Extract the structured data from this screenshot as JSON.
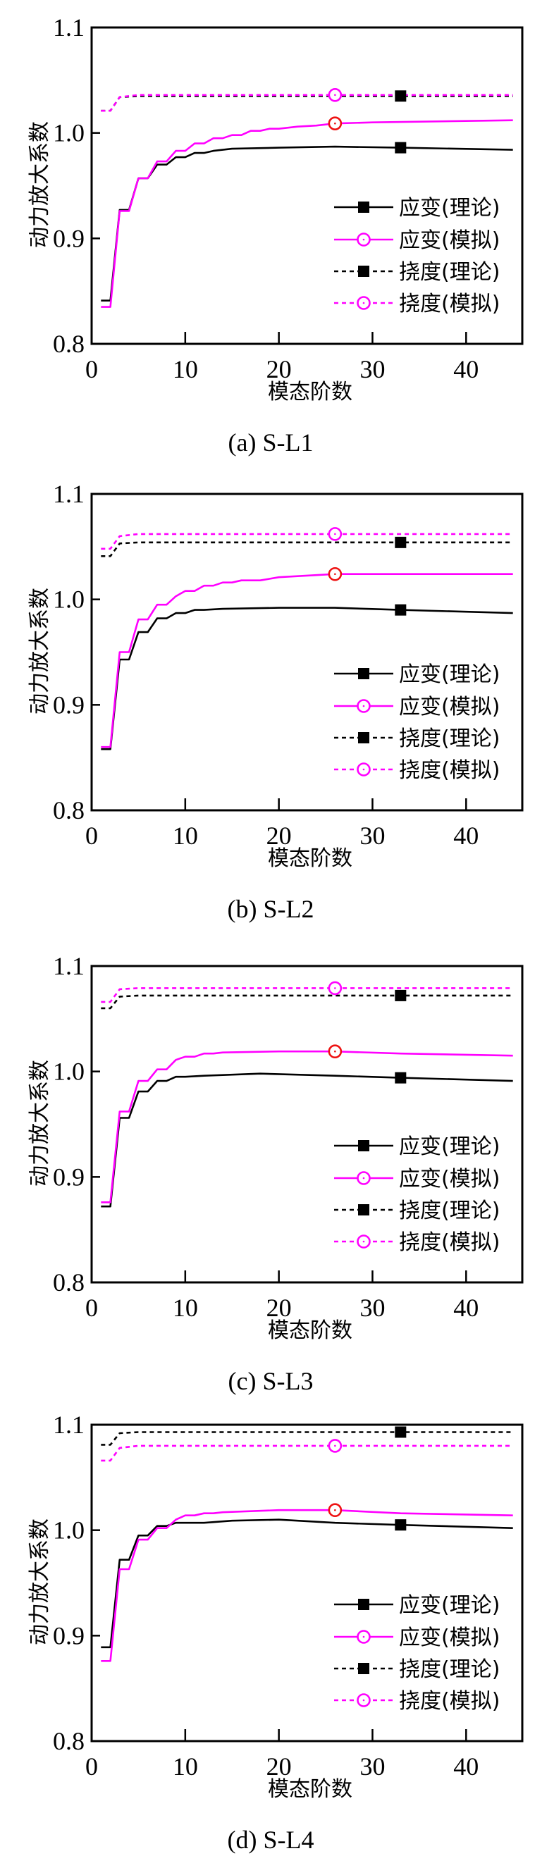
{
  "chart_data": [
    {
      "type": "line",
      "caption": "(a) S-L1",
      "xlabel": "模态阶数",
      "ylabel": "动力放大系数",
      "xlim": [
        0,
        46
      ],
      "ylim": [
        0.8,
        1.1
      ],
      "xticks": [
        "0",
        "10",
        "20",
        "30",
        "40"
      ],
      "yticks": [
        "0.8",
        "0.9",
        "1.0",
        "1.1"
      ],
      "legend_position": "lower-right",
      "series": [
        {
          "name": "应变(理论)",
          "color": "#000000",
          "dash": false,
          "marker": "square",
          "marker_color": "#000000",
          "marker_x": 33,
          "points": [
            [
              1,
              0.841
            ],
            [
              2,
              0.841
            ],
            [
              3,
              0.927
            ],
            [
              4,
              0.927
            ],
            [
              5,
              0.957
            ],
            [
              6,
              0.957
            ],
            [
              7,
              0.97
            ],
            [
              8,
              0.97
            ],
            [
              9,
              0.977
            ],
            [
              10,
              0.977
            ],
            [
              11,
              0.981
            ],
            [
              12,
              0.981
            ],
            [
              13,
              0.983
            ],
            [
              15,
              0.985
            ],
            [
              20,
              0.986
            ],
            [
              26,
              0.987
            ],
            [
              33,
              0.986
            ],
            [
              45,
              0.984
            ]
          ]
        },
        {
          "name": "应变(模拟)",
          "color": "#ff00ff",
          "dash": false,
          "marker": "circle",
          "marker_color": "#ee1111",
          "marker_x": 26,
          "points": [
            [
              1,
              0.835
            ],
            [
              2,
              0.835
            ],
            [
              3,
              0.926
            ],
            [
              4,
              0.926
            ],
            [
              5,
              0.957
            ],
            [
              6,
              0.957
            ],
            [
              7,
              0.973
            ],
            [
              8,
              0.973
            ],
            [
              9,
              0.983
            ],
            [
              10,
              0.983
            ],
            [
              11,
              0.99
            ],
            [
              12,
              0.99
            ],
            [
              13,
              0.995
            ],
            [
              14,
              0.995
            ],
            [
              15,
              0.998
            ],
            [
              16,
              0.998
            ],
            [
              17,
              1.002
            ],
            [
              18,
              1.002
            ],
            [
              19,
              1.004
            ],
            [
              20,
              1.004
            ],
            [
              22,
              1.006
            ],
            [
              24,
              1.007
            ],
            [
              26,
              1.009
            ],
            [
              30,
              1.01
            ],
            [
              45,
              1.012
            ]
          ]
        },
        {
          "name": "挠度(理论)",
          "color": "#000000",
          "dash": true,
          "marker": "square",
          "marker_color": "#000000",
          "marker_x": 33,
          "points": [
            [
              1,
              1.021
            ],
            [
              2,
              1.021
            ],
            [
              3,
              1.034
            ],
            [
              5,
              1.035
            ],
            [
              45,
              1.035
            ]
          ]
        },
        {
          "name": "挠度(模拟)",
          "color": "#ff00ff",
          "dash": true,
          "marker": "circle",
          "marker_color": "#ff00ff",
          "marker_x": 26,
          "points": [
            [
              1,
              1.021
            ],
            [
              2,
              1.021
            ],
            [
              3,
              1.034
            ],
            [
              5,
              1.036
            ],
            [
              45,
              1.036
            ]
          ]
        }
      ]
    },
    {
      "type": "line",
      "caption": "(b) S-L2",
      "xlabel": "模态阶数",
      "ylabel": "动力放大系数",
      "xlim": [
        0,
        46
      ],
      "ylim": [
        0.8,
        1.1
      ],
      "xticks": [
        "0",
        "10",
        "20",
        "30",
        "40"
      ],
      "yticks": [
        "0.8",
        "0.9",
        "1.0",
        "1.1"
      ],
      "legend_position": "lower-right",
      "series": [
        {
          "name": "应变(理论)",
          "color": "#000000",
          "dash": false,
          "marker": "square",
          "marker_color": "#000000",
          "marker_x": 33,
          "points": [
            [
              1,
              0.858
            ],
            [
              2,
              0.858
            ],
            [
              3,
              0.943
            ],
            [
              4,
              0.943
            ],
            [
              5,
              0.969
            ],
            [
              6,
              0.969
            ],
            [
              7,
              0.982
            ],
            [
              8,
              0.982
            ],
            [
              9,
              0.987
            ],
            [
              10,
              0.987
            ],
            [
              11,
              0.99
            ],
            [
              12,
              0.99
            ],
            [
              14,
              0.991
            ],
            [
              20,
              0.992
            ],
            [
              26,
              0.992
            ],
            [
              33,
              0.99
            ],
            [
              45,
              0.987
            ]
          ]
        },
        {
          "name": "应变(模拟)",
          "color": "#ff00ff",
          "dash": false,
          "marker": "circle",
          "marker_color": "#ee1111",
          "marker_x": 26,
          "points": [
            [
              1,
              0.86
            ],
            [
              2,
              0.86
            ],
            [
              3,
              0.95
            ],
            [
              4,
              0.95
            ],
            [
              5,
              0.981
            ],
            [
              6,
              0.981
            ],
            [
              7,
              0.995
            ],
            [
              8,
              0.995
            ],
            [
              9,
              1.003
            ],
            [
              10,
              1.008
            ],
            [
              11,
              1.008
            ],
            [
              12,
              1.013
            ],
            [
              13,
              1.013
            ],
            [
              14,
              1.016
            ],
            [
              15,
              1.016
            ],
            [
              16,
              1.018
            ],
            [
              18,
              1.018
            ],
            [
              20,
              1.021
            ],
            [
              22,
              1.022
            ],
            [
              26,
              1.024
            ],
            [
              30,
              1.024
            ],
            [
              45,
              1.024
            ]
          ]
        },
        {
          "name": "挠度(理论)",
          "color": "#000000",
          "dash": true,
          "marker": "square",
          "marker_color": "#000000",
          "marker_x": 33,
          "points": [
            [
              1,
              1.041
            ],
            [
              2,
              1.041
            ],
            [
              3,
              1.053
            ],
            [
              5,
              1.054
            ],
            [
              45,
              1.054
            ]
          ]
        },
        {
          "name": "挠度(模拟)",
          "color": "#ff00ff",
          "dash": true,
          "marker": "circle",
          "marker_color": "#ff00ff",
          "marker_x": 26,
          "points": [
            [
              1,
              1.048
            ],
            [
              2,
              1.048
            ],
            [
              3,
              1.06
            ],
            [
              5,
              1.062
            ],
            [
              45,
              1.062
            ]
          ]
        }
      ]
    },
    {
      "type": "line",
      "caption": "(c) S-L3",
      "xlabel": "模态阶数",
      "ylabel": "动力放大系数",
      "xlim": [
        0,
        46
      ],
      "ylim": [
        0.8,
        1.1
      ],
      "xticks": [
        "0",
        "10",
        "20",
        "30",
        "40"
      ],
      "yticks": [
        "0.8",
        "0.9",
        "1.0",
        "1.1"
      ],
      "legend_position": "lower-right",
      "series": [
        {
          "name": "应变(理论)",
          "color": "#000000",
          "dash": false,
          "marker": "square",
          "marker_color": "#000000",
          "marker_x": 33,
          "points": [
            [
              1,
              0.872
            ],
            [
              2,
              0.872
            ],
            [
              3,
              0.956
            ],
            [
              4,
              0.956
            ],
            [
              5,
              0.981
            ],
            [
              6,
              0.981
            ],
            [
              7,
              0.991
            ],
            [
              8,
              0.991
            ],
            [
              9,
              0.995
            ],
            [
              10,
              0.995
            ],
            [
              12,
              0.996
            ],
            [
              18,
              0.998
            ],
            [
              26,
              0.996
            ],
            [
              33,
              0.994
            ],
            [
              45,
              0.991
            ]
          ]
        },
        {
          "name": "应变(模拟)",
          "color": "#ff00ff",
          "dash": false,
          "marker": "circle",
          "marker_color": "#ee1111",
          "marker_x": 26,
          "points": [
            [
              1,
              0.876
            ],
            [
              2,
              0.876
            ],
            [
              3,
              0.962
            ],
            [
              4,
              0.962
            ],
            [
              5,
              0.991
            ],
            [
              6,
              0.991
            ],
            [
              7,
              1.002
            ],
            [
              8,
              1.002
            ],
            [
              9,
              1.011
            ],
            [
              10,
              1.014
            ],
            [
              11,
              1.014
            ],
            [
              12,
              1.017
            ],
            [
              13,
              1.017
            ],
            [
              14,
              1.018
            ],
            [
              20,
              1.019
            ],
            [
              26,
              1.019
            ],
            [
              33,
              1.017
            ],
            [
              45,
              1.015
            ]
          ]
        },
        {
          "name": "挠度(理论)",
          "color": "#000000",
          "dash": true,
          "marker": "square",
          "marker_color": "#000000",
          "marker_x": 33,
          "points": [
            [
              1,
              1.06
            ],
            [
              2,
              1.06
            ],
            [
              3,
              1.071
            ],
            [
              5,
              1.072
            ],
            [
              45,
              1.072
            ]
          ]
        },
        {
          "name": "挠度(模拟)",
          "color": "#ff00ff",
          "dash": true,
          "marker": "circle",
          "marker_color": "#ff00ff",
          "marker_x": 26,
          "points": [
            [
              1,
              1.066
            ],
            [
              2,
              1.066
            ],
            [
              3,
              1.078
            ],
            [
              5,
              1.079
            ],
            [
              45,
              1.079
            ]
          ]
        }
      ]
    },
    {
      "type": "line",
      "caption": "(d) S-L4",
      "xlabel": "模态阶数",
      "ylabel": "动力放大系数",
      "xlim": [
        0,
        46
      ],
      "ylim": [
        0.8,
        1.1
      ],
      "xticks": [
        "0",
        "10",
        "20",
        "30",
        "40"
      ],
      "yticks": [
        "0.8",
        "0.9",
        "1.0",
        "1.1"
      ],
      "legend_position": "lower-right",
      "series": [
        {
          "name": "应变(理论)",
          "color": "#000000",
          "dash": false,
          "marker": "square",
          "marker_color": "#000000",
          "marker_x": 33,
          "points": [
            [
              1,
              0.889
            ],
            [
              2,
              0.889
            ],
            [
              3,
              0.972
            ],
            [
              4,
              0.972
            ],
            [
              5,
              0.995
            ],
            [
              6,
              0.995
            ],
            [
              7,
              1.004
            ],
            [
              8,
              1.004
            ],
            [
              9,
              1.007
            ],
            [
              10,
              1.007
            ],
            [
              12,
              1.007
            ],
            [
              15,
              1.009
            ],
            [
              20,
              1.01
            ],
            [
              26,
              1.007
            ],
            [
              33,
              1.005
            ],
            [
              45,
              1.002
            ]
          ]
        },
        {
          "name": "应变(模拟)",
          "color": "#ff00ff",
          "dash": false,
          "marker": "circle",
          "marker_color": "#ee1111",
          "marker_x": 26,
          "points": [
            [
              1,
              0.876
            ],
            [
              2,
              0.876
            ],
            [
              3,
              0.963
            ],
            [
              4,
              0.963
            ],
            [
              5,
              0.991
            ],
            [
              6,
              0.991
            ],
            [
              7,
              1.002
            ],
            [
              8,
              1.002
            ],
            [
              9,
              1.01
            ],
            [
              10,
              1.014
            ],
            [
              11,
              1.014
            ],
            [
              12,
              1.016
            ],
            [
              13,
              1.016
            ],
            [
              14,
              1.017
            ],
            [
              20,
              1.019
            ],
            [
              26,
              1.019
            ],
            [
              33,
              1.016
            ],
            [
              45,
              1.014
            ]
          ]
        },
        {
          "name": "挠度(理论)",
          "color": "#000000",
          "dash": true,
          "marker": "square",
          "marker_color": "#000000",
          "marker_x": 33,
          "points": [
            [
              1,
              1.081
            ],
            [
              2,
              1.081
            ],
            [
              3,
              1.092
            ],
            [
              5,
              1.093
            ],
            [
              45,
              1.093
            ]
          ]
        },
        {
          "name": "挠度(模拟)",
          "color": "#ff00ff",
          "dash": true,
          "marker": "circle",
          "marker_color": "#ff00ff",
          "marker_x": 26,
          "points": [
            [
              1,
              1.066
            ],
            [
              2,
              1.066
            ],
            [
              3,
              1.078
            ],
            [
              5,
              1.08
            ],
            [
              45,
              1.08
            ]
          ]
        }
      ]
    }
  ]
}
